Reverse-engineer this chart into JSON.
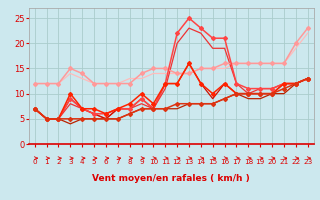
{
  "bg_color": "#cce8ee",
  "grid_color": "#aacccc",
  "x_label": "Vent moyen/en rafales ( km/h )",
  "x_ticks": [
    0,
    1,
    2,
    3,
    4,
    5,
    6,
    7,
    8,
    9,
    10,
    11,
    12,
    13,
    14,
    15,
    16,
    17,
    18,
    19,
    20,
    21,
    22,
    23
  ],
  "ylim": [
    0,
    27
  ],
  "yticks": [
    0,
    5,
    10,
    15,
    20,
    25
  ],
  "lines": [
    {
      "x": [
        0,
        1,
        2,
        3,
        4,
        5,
        6,
        7,
        8,
        9,
        10,
        11,
        12,
        13,
        14,
        15,
        16,
        17,
        18,
        19,
        20,
        21,
        22,
        23
      ],
      "y": [
        12,
        12,
        12,
        15,
        14,
        12,
        12,
        12,
        12,
        14,
        15,
        15,
        14,
        14,
        15,
        15,
        16,
        16,
        16,
        16,
        16,
        16,
        20,
        23
      ],
      "color": "#ff9999",
      "lw": 1.1,
      "marker": "D",
      "ms": 2.0
    },
    {
      "x": [
        0,
        1,
        2,
        3,
        4,
        5,
        6,
        7,
        8,
        9,
        10,
        11,
        12,
        13,
        14,
        15,
        16,
        17,
        18,
        19,
        20,
        21,
        22,
        23
      ],
      "y": [
        12,
        12,
        12,
        14,
        13,
        12,
        12,
        12,
        13,
        13,
        14,
        14,
        14,
        14,
        15,
        15,
        15,
        16,
        16,
        16,
        16,
        16,
        19,
        22
      ],
      "color": "#ffbbbb",
      "lw": 0.9,
      "marker": null,
      "ms": 0
    },
    {
      "x": [
        0,
        1,
        2,
        3,
        4,
        5,
        6,
        7,
        8,
        9,
        10,
        11,
        12,
        13,
        14,
        15,
        16,
        17,
        18,
        19,
        20,
        21,
        22,
        23
      ],
      "y": [
        7,
        5,
        5,
        9,
        7,
        6,
        6,
        7,
        7,
        9,
        7,
        12,
        22,
        25,
        23,
        21,
        21,
        12,
        11,
        11,
        11,
        12,
        12,
        13
      ],
      "color": "#ff4444",
      "lw": 1.1,
      "marker": "D",
      "ms": 2.0
    },
    {
      "x": [
        0,
        1,
        2,
        3,
        4,
        5,
        6,
        7,
        8,
        9,
        10,
        11,
        12,
        13,
        14,
        15,
        16,
        17,
        18,
        19,
        20,
        21,
        22,
        23
      ],
      "y": [
        7,
        5,
        5,
        8,
        7,
        6,
        5,
        7,
        7,
        8,
        7,
        11,
        20,
        23,
        22,
        19,
        19,
        12,
        10,
        11,
        11,
        12,
        12,
        13
      ],
      "color": "#ee3333",
      "lw": 0.9,
      "marker": null,
      "ms": 0
    },
    {
      "x": [
        0,
        1,
        2,
        3,
        4,
        5,
        6,
        7,
        8,
        9,
        10,
        11,
        12,
        13,
        14,
        15,
        16,
        17,
        18,
        19,
        20,
        21,
        22,
        23
      ],
      "y": [
        7,
        5,
        5,
        10,
        7,
        7,
        6,
        7,
        8,
        10,
        8,
        12,
        12,
        16,
        12,
        10,
        12,
        10,
        10,
        10,
        10,
        12,
        12,
        13
      ],
      "color": "#ff2200",
      "lw": 1.1,
      "marker": "D",
      "ms": 2.0
    },
    {
      "x": [
        0,
        1,
        2,
        3,
        4,
        5,
        6,
        7,
        8,
        9,
        10,
        11,
        12,
        13,
        14,
        15,
        16,
        17,
        18,
        19,
        20,
        21,
        22,
        23
      ],
      "y": [
        7,
        5,
        5,
        9,
        7,
        6,
        5,
        7,
        7,
        9,
        7,
        12,
        12,
        16,
        12,
        9,
        12,
        10,
        10,
        10,
        10,
        12,
        12,
        13
      ],
      "color": "#cc1100",
      "lw": 0.9,
      "marker": null,
      "ms": 0
    },
    {
      "x": [
        0,
        1,
        2,
        3,
        4,
        5,
        6,
        7,
        8,
        9,
        10,
        11,
        12,
        13,
        14,
        15,
        16,
        17,
        18,
        19,
        20,
        21,
        22,
        23
      ],
      "y": [
        7,
        5,
        5,
        5,
        5,
        5,
        5,
        5,
        6,
        7,
        7,
        7,
        8,
        8,
        8,
        8,
        9,
        10,
        10,
        10,
        10,
        11,
        12,
        13
      ],
      "color": "#dd3311",
      "lw": 1.1,
      "marker": "D",
      "ms": 2.0
    },
    {
      "x": [
        0,
        1,
        2,
        3,
        4,
        5,
        6,
        7,
        8,
        9,
        10,
        11,
        12,
        13,
        14,
        15,
        16,
        17,
        18,
        19,
        20,
        21,
        22,
        23
      ],
      "y": [
        7,
        5,
        5,
        4,
        5,
        5,
        5,
        5,
        6,
        7,
        7,
        7,
        7,
        8,
        8,
        8,
        9,
        10,
        9,
        9,
        10,
        10,
        12,
        13
      ],
      "color": "#bb2200",
      "lw": 0.9,
      "marker": null,
      "ms": 0
    }
  ],
  "arrow_color": "#dd0000",
  "tick_label_color": "#dd0000",
  "xlabel_color": "#dd0000",
  "xlabel_fontsize": 6.5,
  "ytick_fontsize": 6.0,
  "xtick_fontsize": 5.2
}
